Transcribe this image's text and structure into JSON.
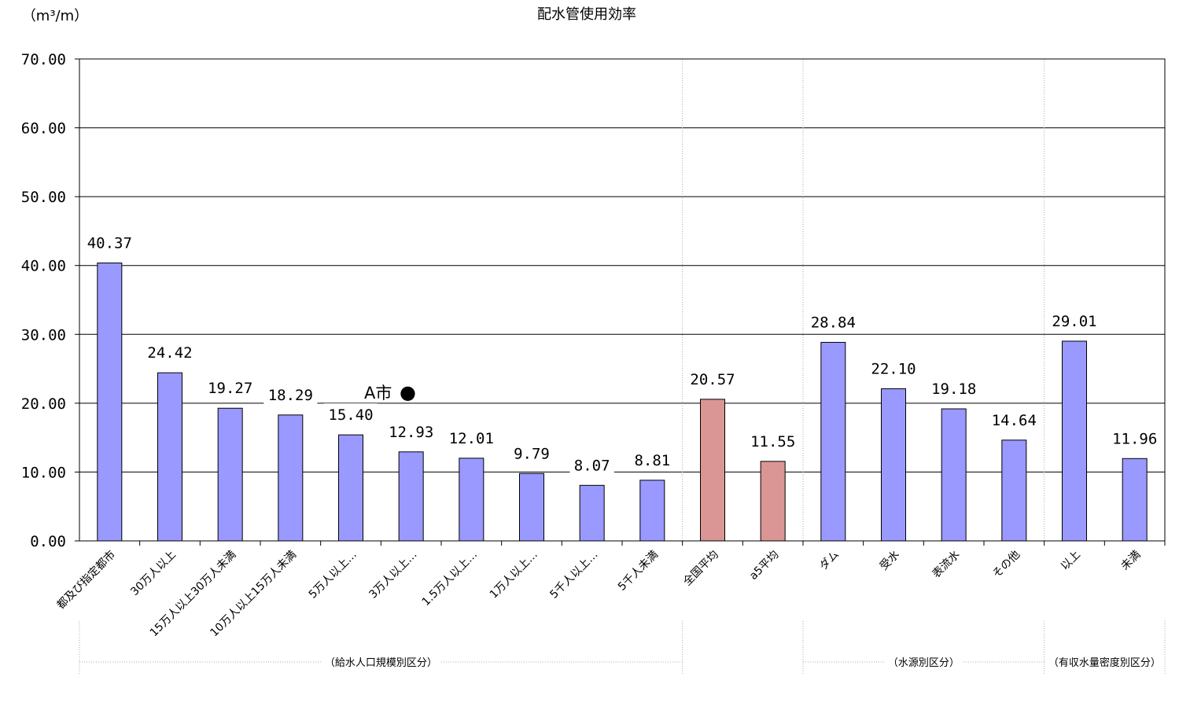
{
  "chart_data": {
    "type": "bar",
    "title": "配水管使用効率",
    "ylabel": "（m³/m）",
    "ylim": [
      0,
      70
    ],
    "yticks": [
      "0.00",
      "10.00",
      "20.00",
      "30.00",
      "40.00",
      "50.00",
      "60.00",
      "70.00"
    ],
    "grid": true,
    "categories": [
      "都及び指定都市",
      "30万人以上",
      "15万人以上30万人未満",
      "10万人以上15万人未満",
      "5万人以上…",
      "3万人以上…",
      "1.5万人以上…",
      "1万人以上…",
      "5千人以上…",
      "5千人未満",
      "全国平均",
      "a5平均",
      "ダム",
      "受水",
      "表流水",
      "その他",
      "以上",
      "未満"
    ],
    "values": [
      40.37,
      24.42,
      19.27,
      18.29,
      15.4,
      12.93,
      12.01,
      9.79,
      8.07,
      8.81,
      20.57,
      11.55,
      28.84,
      22.1,
      19.18,
      14.64,
      29.01,
      11.96
    ],
    "value_labels": [
      "40.37",
      "24.42",
      "19.27",
      "18.29",
      "15.40",
      "12.93",
      "12.01",
      "9.79",
      "8.07",
      "8.81",
      "20.57",
      "11.55",
      "28.84",
      "22.10",
      "19.18",
      "14.64",
      "29.01",
      "11.96"
    ],
    "bar_colors": [
      "#9999ff",
      "#9999ff",
      "#9999ff",
      "#9999ff",
      "#9999ff",
      "#9999ff",
      "#9999ff",
      "#9999ff",
      "#9999ff",
      "#9999ff",
      "#d99694",
      "#d99694",
      "#9999ff",
      "#9999ff",
      "#9999ff",
      "#9999ff",
      "#9999ff",
      "#9999ff"
    ],
    "groups": [
      "（給水人口規模別区分）",
      "（水源別区分）",
      "（有収水量密度別区分）"
    ],
    "annotation": {
      "label": "A市",
      "marker": "●",
      "value": 20.0
    }
  }
}
